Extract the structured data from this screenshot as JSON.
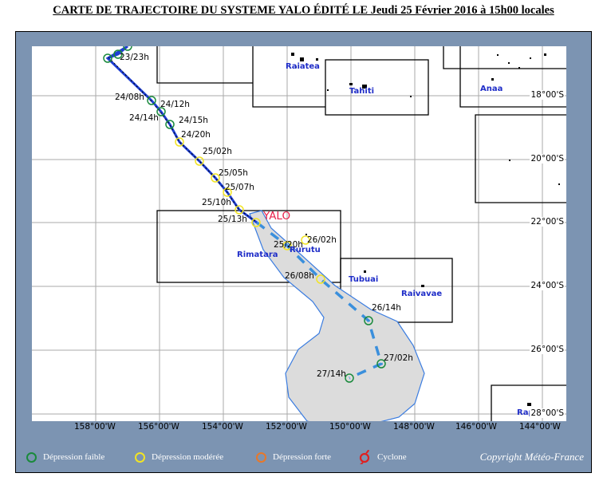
{
  "title": "CARTE DE TRAJECTOIRE DU SYSTEME YALO ÉDITÉ LE Jeudi 25 Février 2016 à 15h00 locales",
  "storm_name": "YALO",
  "latitudes": [
    "18°00'S",
    "20°00'S",
    "22°00'S",
    "24°00'S",
    "26°00'S",
    "28°00'S"
  ],
  "longitudes": [
    "158°00'W",
    "156°00'W",
    "154°00'W",
    "152°00'W",
    "150°00'W",
    "148°00'W",
    "146°00'W",
    "144°00'W"
  ],
  "islands": [
    "Raiatea",
    "Tahiti",
    "Anaa",
    "Rimatara",
    "Rurutu",
    "Tubuai",
    "Raivavae",
    "Rapa"
  ],
  "track_points": [
    {
      "label": "23/23h",
      "type": "faible"
    },
    {
      "label": "24/08h",
      "type": "faible"
    },
    {
      "label": "24/12h",
      "type": "faible"
    },
    {
      "label": "24/14h",
      "type": "faible"
    },
    {
      "label": "24/15h",
      "type": "faible"
    },
    {
      "label": "24/20h",
      "type": "moderee"
    },
    {
      "label": "25/02h",
      "type": "moderee"
    },
    {
      "label": "25/05h",
      "type": "moderee"
    },
    {
      "label": "25/07h",
      "type": "moderee"
    },
    {
      "label": "25/10h",
      "type": "moderee"
    },
    {
      "label": "25/13h",
      "type": "moderee"
    }
  ],
  "forecast_points": [
    {
      "label": "25/20h",
      "type": "moderee"
    },
    {
      "label": "26/02h",
      "type": "moderee"
    },
    {
      "label": "26/08h",
      "type": "moderee"
    },
    {
      "label": "26/14h",
      "type": "faible"
    },
    {
      "label": "27/02h",
      "type": "faible"
    },
    {
      "label": "27/14h",
      "type": "faible"
    }
  ],
  "legend": [
    {
      "label": "Dépression faible",
      "color": "#1a8a3c"
    },
    {
      "label": "Dépression modérée",
      "color": "#f2e424"
    },
    {
      "label": "Dépression forte",
      "color": "#e8782a"
    },
    {
      "label": "Cyclone",
      "color": "#e02020"
    }
  ],
  "copyright": "Copyright Météo-France",
  "colors": {
    "track": "#1f3fd4",
    "forecast": "#3a8fdc",
    "cone_fill": "#dcdcdc",
    "frame": "#7c94b2",
    "storm_name": "#e8204a"
  }
}
